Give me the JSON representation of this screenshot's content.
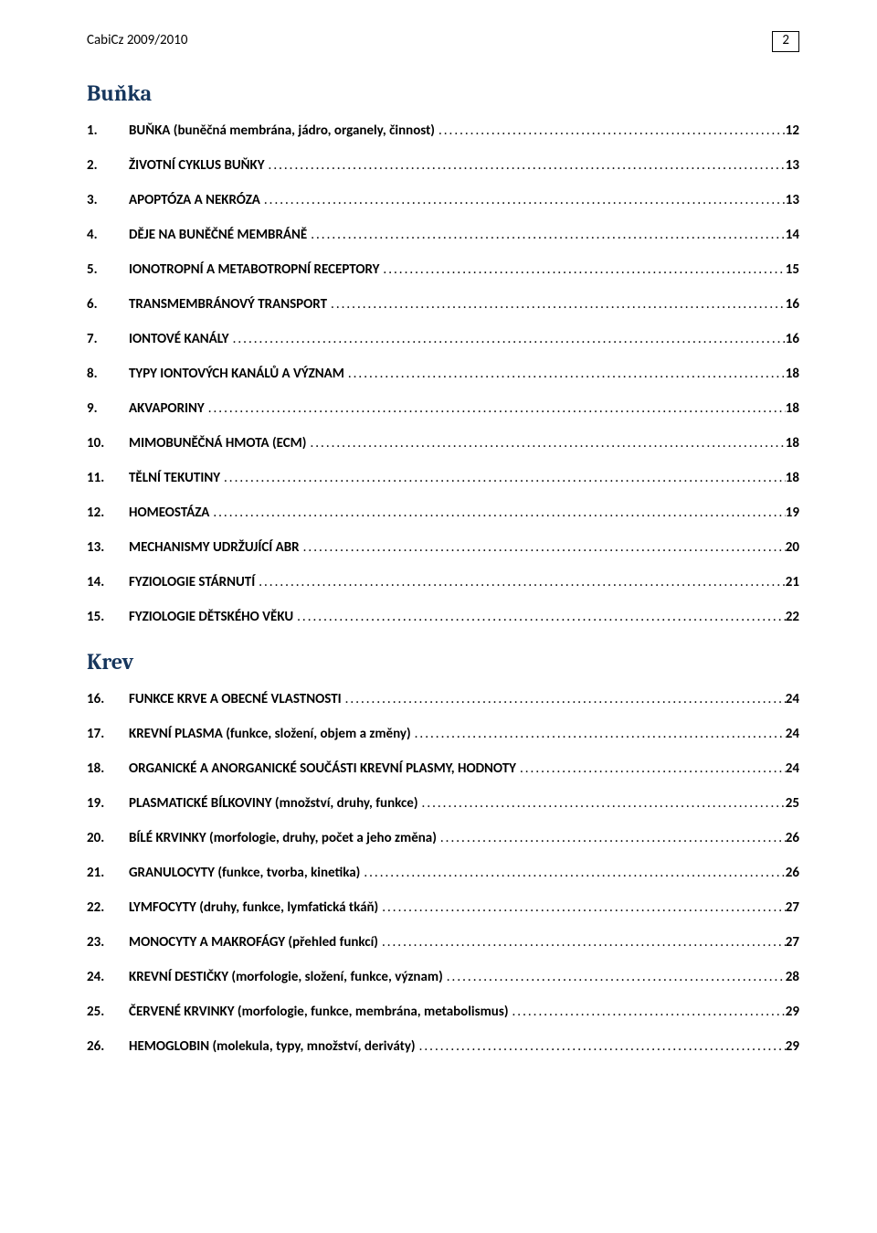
{
  "header": {
    "left": "CabiCz 2009/2010",
    "page_number": "2"
  },
  "colors": {
    "section_title": "#16365d",
    "text": "#000000",
    "background": "#ffffff",
    "border": "#000000"
  },
  "typography": {
    "body_font": "Calibri",
    "heading_font": "Cambria",
    "body_size_pt": 11,
    "heading_size_pt": 18
  },
  "sections": [
    {
      "title": "Buňka",
      "items": [
        {
          "num": "1.",
          "title": "BUŇKA (buněčná membrána, jádro, organely, činnost)",
          "page": "12"
        },
        {
          "num": "2.",
          "title": "ŽIVOTNÍ CYKLUS BUŇKY",
          "page": "13"
        },
        {
          "num": "3.",
          "title": "APOPTÓZA A NEKRÓZA",
          "page": "13"
        },
        {
          "num": "4.",
          "title": "DĚJE NA BUNĚČNÉ MEMBRÁNĚ",
          "page": "14"
        },
        {
          "num": "5.",
          "title": "IONOTROPNÍ A METABOTROPNÍ RECEPTORY",
          "page": "15"
        },
        {
          "num": "6.",
          "title": "TRANSMEMBRÁNOVÝ TRANSPORT",
          "page": "16"
        },
        {
          "num": "7.",
          "title": "IONTOVÉ KANÁLY",
          "page": "16"
        },
        {
          "num": "8.",
          "title": "TYPY IONTOVÝCH KANÁLŮ A VÝZNAM",
          "page": "18"
        },
        {
          "num": "9.",
          "title": "AKVAPORINY",
          "page": "18"
        },
        {
          "num": "10.",
          "title": "MIMOBUNĚČNÁ HMOTA (ECM)",
          "page": "18"
        },
        {
          "num": "11.",
          "title": "TĚLNÍ TEKUTINY",
          "page": "18"
        },
        {
          "num": "12.",
          "title": "HOMEOSTÁZA",
          "page": "19"
        },
        {
          "num": "13.",
          "title": "MECHANISMY UDRŽUJÍCÍ ABR",
          "page": "20"
        },
        {
          "num": "14.",
          "title": "FYZIOLOGIE STÁRNUTÍ",
          "page": "21"
        },
        {
          "num": "15.",
          "title": "FYZIOLOGIE DĚTSKÉHO VĚKU",
          "page": "22"
        }
      ]
    },
    {
      "title": "Krev",
      "items": [
        {
          "num": "16.",
          "title": "FUNKCE KRVE A OBECNÉ VLASTNOSTI",
          "page": "24"
        },
        {
          "num": "17.",
          "title": "KREVNÍ PLASMA (funkce, složení, objem a změny)",
          "page": "24"
        },
        {
          "num": "18.",
          "title": "ORGANICKÉ A ANORGANICKÉ SOUČÁSTI KREVNÍ PLASMY, HODNOTY",
          "page": "24"
        },
        {
          "num": "19.",
          "title": "PLASMATICKÉ BÍLKOVINY (množství, druhy, funkce)",
          "page": "25"
        },
        {
          "num": "20.",
          "title": "BÍLÉ KRVINKY (morfologie, druhy, počet a jeho změna)",
          "page": "26"
        },
        {
          "num": "21.",
          "title": "GRANULOCYTY (funkce, tvorba, kinetika)",
          "page": "26"
        },
        {
          "num": "22.",
          "title": "LYMFOCYTY (druhy, funkce, lymfatická tkáň)",
          "page": "27"
        },
        {
          "num": "23.",
          "title": "MONOCYTY A MAKROFÁGY (přehled funkcí)",
          "page": "27"
        },
        {
          "num": "24.",
          "title": "KREVNÍ DESTIČKY (morfologie, složení, funkce, význam)",
          "page": "28"
        },
        {
          "num": "25.",
          "title": "ČERVENÉ KRVINKY (morfologie, funkce, membrána, metabolismus)",
          "page": "29"
        },
        {
          "num": "26.",
          "title": "HEMOGLOBIN (molekula, typy, množství, deriváty)",
          "page": "29"
        }
      ]
    }
  ]
}
